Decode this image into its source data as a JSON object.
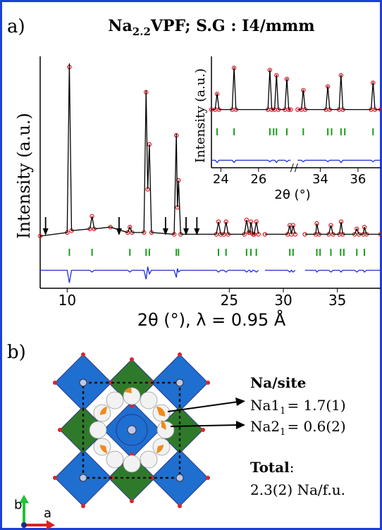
{
  "panel_a": {
    "label": "a)",
    "title": {
      "formula": "Na",
      "subscript": "2.2",
      "rest": "VPF; S.G : I4/mmm"
    }
  },
  "chart_data": [
    {
      "type": "line",
      "xlabel": "2θ (°), λ = 0.95 Å",
      "ylabel": "Intensity (a.u.)",
      "xlim": [
        7.5,
        39
      ],
      "ylim": [
        -25,
        100
      ],
      "xticks": [
        10,
        25,
        30,
        35
      ],
      "x": [
        7.5,
        10.0,
        10.2,
        10.4,
        12.1,
        12.3,
        12.5,
        14.0,
        15.6,
        15.8,
        16.0,
        17.1,
        17.3,
        17.45,
        17.6,
        17.8,
        19.9,
        20.1,
        20.2,
        20.3,
        20.5,
        23.8,
        24.0,
        24.2,
        24.5,
        24.7,
        24.9,
        26.4,
        26.6,
        26.8,
        26.9,
        27.0,
        27.2,
        27.3,
        27.5,
        27.7,
        28.0,
        28.3,
        30.4,
        30.6,
        30.75,
        30.9,
        31.1,
        31.6,
        32.0,
        33.0,
        33.1,
        33.3,
        34.2,
        34.4,
        34.6,
        35.2,
        35.35,
        35.5,
        36.6,
        36.8,
        37.0,
        37.4,
        37.5,
        37.7,
        39.0
      ],
      "series": [
        {
          "color": "#e0141e",
          "marker": "circle",
          "values": [
            4,
            6,
            98,
            7,
            8,
            15,
            8,
            9,
            6,
            9,
            6,
            6,
            84,
            30,
            55,
            6,
            5,
            60,
            20,
            35,
            5,
            5,
            12,
            5,
            5,
            12,
            5,
            5,
            13,
            6,
            6,
            12,
            5,
            5,
            12,
            5,
            null,
            5,
            5,
            10,
            5,
            10,
            5,
            null,
            5,
            5,
            11,
            5,
            5,
            10,
            5,
            5,
            12,
            5,
            5,
            8,
            5,
            5,
            9,
            5,
            5
          ]
        },
        {
          "color": "#000000",
          "values": [
            4,
            6,
            100,
            7,
            8,
            15,
            8,
            9,
            6,
            9,
            6,
            6,
            85,
            30,
            55,
            6,
            5,
            61,
            20,
            35,
            5,
            5,
            12,
            5,
            5,
            12,
            5,
            5,
            13,
            6,
            6,
            12,
            5,
            5,
            12,
            5,
            null,
            5,
            5,
            10,
            5,
            10,
            5,
            null,
            5,
            5,
            11,
            5,
            5,
            10,
            5,
            5,
            12,
            5,
            5,
            8,
            5,
            5,
            9,
            5,
            5
          ]
        },
        {
          "color": "#1f2fd0",
          "values": [
            -15,
            -15,
            -22,
            -15,
            -15,
            -16,
            -15,
            -15,
            -15,
            -16,
            -15,
            -15,
            -20,
            -13,
            -17,
            -15,
            -15,
            -19,
            -14,
            -16,
            -15,
            -15,
            -16,
            -15,
            -15,
            -16,
            -15,
            -15,
            -16,
            -15,
            -15,
            -16,
            -15,
            -15,
            -16,
            -15,
            null,
            -15,
            -15,
            -16,
            -15,
            -16,
            -15,
            null,
            -15,
            -15,
            -16,
            -15,
            -15,
            -16,
            -15,
            -15,
            -16,
            -15,
            -15,
            -16,
            -15,
            -15,
            -16,
            -15,
            -15
          ]
        }
      ],
      "bragg_ticks": {
        "color": "#1a9e1a",
        "x": [
          10.2,
          12.3,
          15.8,
          17.3,
          17.6,
          20.1,
          20.3,
          24.0,
          24.7,
          26.6,
          27.0,
          27.5,
          30.6,
          30.9,
          33.1,
          33.4,
          34.4,
          35.3,
          35.6,
          36.8,
          37.5
        ]
      },
      "arrows_x": [
        8,
        14.8,
        19.1,
        21,
        22
      ]
    },
    {
      "type": "line",
      "xlabel": "2θ (°)",
      "ylabel": "Intensity (a.u.)",
      "xlim": [
        23.5,
        37.2
      ],
      "axis_break": [
        27.7,
        32.8
      ],
      "ylim": [
        -40,
        100
      ],
      "xticks": [
        24,
        26,
        34,
        36
      ],
      "x": [
        23.5,
        23.7,
        23.8,
        23.9,
        24.6,
        24.7,
        24.8,
        26.5,
        26.6,
        26.7,
        26.85,
        26.95,
        27.05,
        27.4,
        27.5,
        27.6,
        27.7,
        30.0,
        32.8,
        33.0,
        33.1,
        33.2,
        34.3,
        34.4,
        34.5,
        35.0,
        35.1,
        35.2,
        36.7,
        36.8,
        36.9,
        37.2
      ],
      "series": [
        {
          "color": "#e0141e",
          "marker": "circle",
          "values": [
            38,
            38,
            59,
            38,
            38,
            94,
            38,
            38,
            91,
            38,
            38,
            84,
            38,
            38,
            79,
            38,
            38,
            null,
            38,
            38,
            64,
            38,
            38,
            69,
            38,
            38,
            84,
            38,
            38,
            74,
            38,
            38
          ]
        },
        {
          "color": "#000000",
          "values": [
            38,
            38,
            60,
            38,
            38,
            95,
            38,
            38,
            92,
            38,
            38,
            85,
            38,
            38,
            80,
            38,
            38,
            null,
            38,
            38,
            65,
            38,
            38,
            70,
            38,
            38,
            85,
            38,
            38,
            75,
            38,
            38
          ]
        },
        {
          "color": "#1f2fd0",
          "values": [
            -30,
            -30,
            -33,
            -30,
            -30,
            -33,
            -30,
            -30,
            -32,
            -30,
            -30,
            -33,
            -30,
            -30,
            -32,
            -30,
            -30,
            null,
            -30,
            -30,
            -32,
            -30,
            -30,
            -32,
            -30,
            -30,
            -33,
            -30,
            -30,
            -32,
            -30,
            -30
          ]
        }
      ],
      "bragg_ticks": {
        "color": "#1a9e1a",
        "x": [
          23.8,
          24.7,
          26.6,
          26.8,
          26.95,
          27.5,
          33.1,
          34.4,
          34.6,
          35.1,
          35.3,
          36.8
        ]
      }
    }
  ],
  "panel_b": {
    "label": "b)",
    "heading": "Na/site",
    "sites": [
      {
        "name": "Na1",
        "subscript": "1",
        "occupancy": "= 1.7(1)"
      },
      {
        "name": "Na2",
        "subscript": "1",
        "occupancy": "= 0.6(2)"
      }
    ],
    "total_label": "Total",
    "total_colon": ":",
    "total_value": "2.3(2) Na/f.u.",
    "axes": [
      "b",
      "a"
    ]
  }
}
